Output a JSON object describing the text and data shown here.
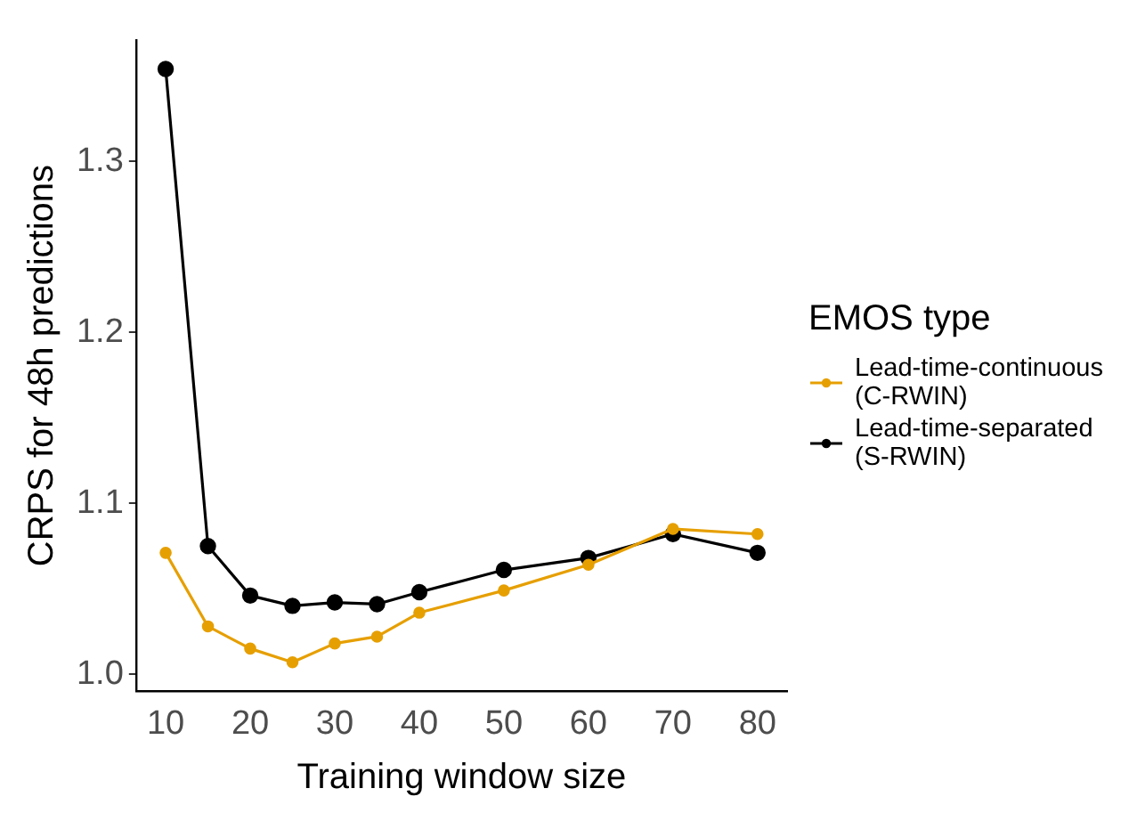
{
  "chart_data": {
    "type": "line",
    "xlabel": "Training window size",
    "ylabel": "CRPS for 48h predictions",
    "legend_title": "EMOS type",
    "legend": "right",
    "grid": false,
    "marker": "circle",
    "line_style": "solid",
    "x": [
      10,
      15,
      20,
      25,
      30,
      35,
      40,
      50,
      60,
      70,
      80
    ],
    "xlim": [
      6.5,
      83.5
    ],
    "xticks": [
      10,
      20,
      30,
      40,
      50,
      60,
      70,
      80
    ],
    "ylim": [
      0.99,
      1.371
    ],
    "yticks": [
      {
        "value": 1.0,
        "label": "1.0"
      },
      1.1,
      1.2,
      1.3
    ],
    "series": [
      {
        "name": "Lead-time-continuous (C-RWIN)",
        "color": "#e69f00",
        "values": [
          1.071,
          1.028,
          1.015,
          1.007,
          1.018,
          1.022,
          1.036,
          1.049,
          1.064,
          1.085,
          1.082
        ]
      },
      {
        "name": "Lead-time-separated (S-RWIN)",
        "color": "#000000",
        "values": [
          1.354,
          1.075,
          1.046,
          1.04,
          1.042,
          1.041,
          1.048,
          1.061,
          1.068,
          1.082,
          1.071
        ]
      }
    ]
  }
}
